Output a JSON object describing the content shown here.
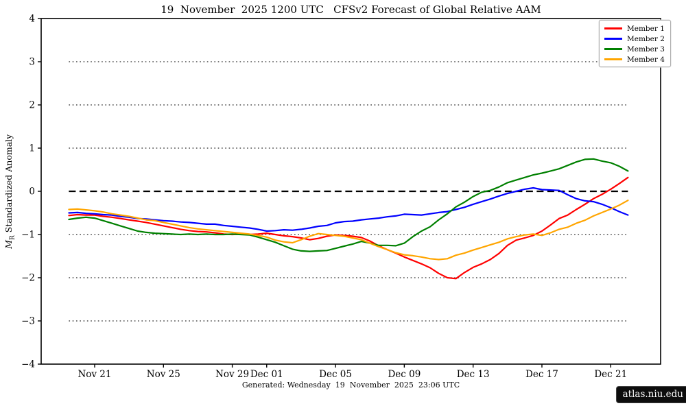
{
  "chart": {
    "title": "19  November  2025 1200 UTC   CFSv2 Forecast of Global Relative AAM",
    "ylabel_italic": "M",
    "ylabel_sub": "R",
    "ylabel_rest": " Standardized Anomaly",
    "caption": "Generated: Wednesday  19  November  2025  23:06 UTC",
    "badge": "atlas.niu.edu"
  },
  "chart_data": {
    "type": "line",
    "title": "19  November  2025 1200 UTC   CFSv2 Forecast of Global Relative AAM",
    "xlabel": "",
    "ylabel": "M_R Standardized Anomaly",
    "x_unit": "days since 2025-11-19 00UTC",
    "xlim": [
      -1.11,
      34.9
    ],
    "ylim": [
      -4,
      4
    ],
    "grid": "horizontal-dotted",
    "legend_position": "top-right",
    "axis_color": "#000000",
    "gridline_color": "#4d4d4d",
    "zero_line_color": "#000000",
    "yticks": [
      {
        "v": 4,
        "label": "4"
      },
      {
        "v": 3,
        "label": "3"
      },
      {
        "v": 2,
        "label": "2"
      },
      {
        "v": 1,
        "label": "1"
      },
      {
        "v": 0,
        "label": "0"
      },
      {
        "v": -1,
        "label": "−1"
      },
      {
        "v": -2,
        "label": "−2"
      },
      {
        "v": -3,
        "label": "−3"
      },
      {
        "v": -4,
        "label": "−4"
      }
    ],
    "xticks": [
      {
        "v": 2,
        "label": "Nov 21"
      },
      {
        "v": 6,
        "label": "Nov 25"
      },
      {
        "v": 10,
        "label": "Nov 29"
      },
      {
        "v": 12,
        "label": "Dec 01"
      },
      {
        "v": 16,
        "label": "Dec 05"
      },
      {
        "v": 20,
        "label": "Dec 09"
      },
      {
        "v": 24,
        "label": "Dec 13"
      },
      {
        "v": 28,
        "label": "Dec 17"
      },
      {
        "v": 32,
        "label": "Dec 21"
      }
    ],
    "dotted_reference_y": [
      3,
      2,
      1,
      -1,
      -2,
      -3
    ],
    "zero_dashed_y": 0,
    "reference_span_x": [
      0.5,
      33.0
    ],
    "x": [
      0.5,
      1,
      1.5,
      2,
      2.5,
      3,
      3.5,
      4,
      4.5,
      5,
      5.5,
      6,
      6.5,
      7,
      7.5,
      8,
      8.5,
      9,
      9.5,
      10,
      10.5,
      11,
      11.5,
      12,
      12.5,
      13,
      13.5,
      14,
      14.5,
      15,
      15.5,
      16,
      16.5,
      17,
      17.5,
      18,
      18.5,
      19,
      19.5,
      20,
      20.5,
      21,
      21.5,
      22,
      22.5,
      23,
      23.5,
      24,
      24.5,
      25,
      25.5,
      26,
      26.5,
      27,
      27.5,
      28,
      28.5,
      29,
      29.5,
      30,
      30.5,
      31,
      31.5,
      32,
      32.5,
      33
    ],
    "series": [
      {
        "name": "Member 1",
        "color": "#ff0000",
        "values": [
          -0.56,
          -0.54,
          -0.55,
          -0.55,
          -0.58,
          -0.6,
          -0.63,
          -0.66,
          -0.69,
          -0.72,
          -0.76,
          -0.8,
          -0.84,
          -0.88,
          -0.91,
          -0.93,
          -0.94,
          -0.96,
          -0.99,
          -1.0,
          -0.99,
          -1.0,
          -0.99,
          -0.97,
          -1.0,
          -1.03,
          -1.05,
          -1.08,
          -1.12,
          -1.09,
          -1.04,
          -1.01,
          -1.02,
          -1.04,
          -1.07,
          -1.15,
          -1.26,
          -1.35,
          -1.43,
          -1.52,
          -1.6,
          -1.68,
          -1.77,
          -1.9,
          -2.0,
          -2.02,
          -1.88,
          -1.76,
          -1.68,
          -1.58,
          -1.44,
          -1.25,
          -1.13,
          -1.08,
          -1.02,
          -0.92,
          -0.78,
          -0.63,
          -0.55,
          -0.42,
          -0.3,
          -0.17,
          -0.07,
          0.05,
          0.18,
          0.32
        ]
      },
      {
        "name": "Member 2",
        "color": "#0000ff",
        "values": [
          -0.5,
          -0.49,
          -0.51,
          -0.52,
          -0.54,
          -0.55,
          -0.58,
          -0.6,
          -0.63,
          -0.64,
          -0.66,
          -0.68,
          -0.69,
          -0.71,
          -0.72,
          -0.74,
          -0.76,
          -0.76,
          -0.79,
          -0.81,
          -0.83,
          -0.85,
          -0.88,
          -0.92,
          -0.91,
          -0.89,
          -0.9,
          -0.88,
          -0.85,
          -0.81,
          -0.79,
          -0.73,
          -0.7,
          -0.69,
          -0.66,
          -0.64,
          -0.62,
          -0.59,
          -0.57,
          -0.53,
          -0.54,
          -0.55,
          -0.52,
          -0.49,
          -0.47,
          -0.42,
          -0.37,
          -0.3,
          -0.24,
          -0.18,
          -0.11,
          -0.05,
          0.0,
          0.05,
          0.08,
          0.04,
          0.03,
          0.02,
          -0.08,
          -0.17,
          -0.22,
          -0.24,
          -0.3,
          -0.38,
          -0.47,
          -0.55
        ]
      },
      {
        "name": "Member 3",
        "color": "#008000",
        "values": [
          -0.65,
          -0.62,
          -0.6,
          -0.62,
          -0.68,
          -0.74,
          -0.8,
          -0.86,
          -0.92,
          -0.95,
          -0.97,
          -0.98,
          -0.99,
          -1.0,
          -0.99,
          -1.0,
          -0.99,
          -1.0,
          -1.0,
          -0.99,
          -1.0,
          -1.01,
          -1.06,
          -1.12,
          -1.18,
          -1.26,
          -1.34,
          -1.38,
          -1.39,
          -1.38,
          -1.37,
          -1.32,
          -1.27,
          -1.22,
          -1.16,
          -1.2,
          -1.25,
          -1.25,
          -1.26,
          -1.2,
          -1.05,
          -0.92,
          -0.82,
          -0.66,
          -0.52,
          -0.36,
          -0.25,
          -0.12,
          -0.02,
          0.02,
          0.1,
          0.2,
          0.26,
          0.32,
          0.38,
          0.42,
          0.47,
          0.52,
          0.6,
          0.68,
          0.74,
          0.75,
          0.7,
          0.66,
          0.58,
          0.47
        ]
      },
      {
        "name": "Member 4",
        "color": "#ffa500",
        "values": [
          -0.42,
          -0.41,
          -0.43,
          -0.45,
          -0.48,
          -0.52,
          -0.55,
          -0.58,
          -0.62,
          -0.66,
          -0.68,
          -0.72,
          -0.76,
          -0.8,
          -0.84,
          -0.87,
          -0.89,
          -0.91,
          -0.93,
          -0.95,
          -0.97,
          -0.99,
          -1.02,
          -1.06,
          -1.13,
          -1.17,
          -1.19,
          -1.12,
          -1.04,
          -0.98,
          -1.0,
          -1.02,
          -1.04,
          -1.08,
          -1.12,
          -1.2,
          -1.28,
          -1.35,
          -1.42,
          -1.47,
          -1.49,
          -1.52,
          -1.56,
          -1.58,
          -1.56,
          -1.48,
          -1.43,
          -1.36,
          -1.3,
          -1.24,
          -1.18,
          -1.1,
          -1.05,
          -1.01,
          -0.99,
          -1.02,
          -0.96,
          -0.88,
          -0.83,
          -0.74,
          -0.67,
          -0.57,
          -0.49,
          -0.41,
          -0.32,
          -0.21
        ]
      }
    ]
  }
}
